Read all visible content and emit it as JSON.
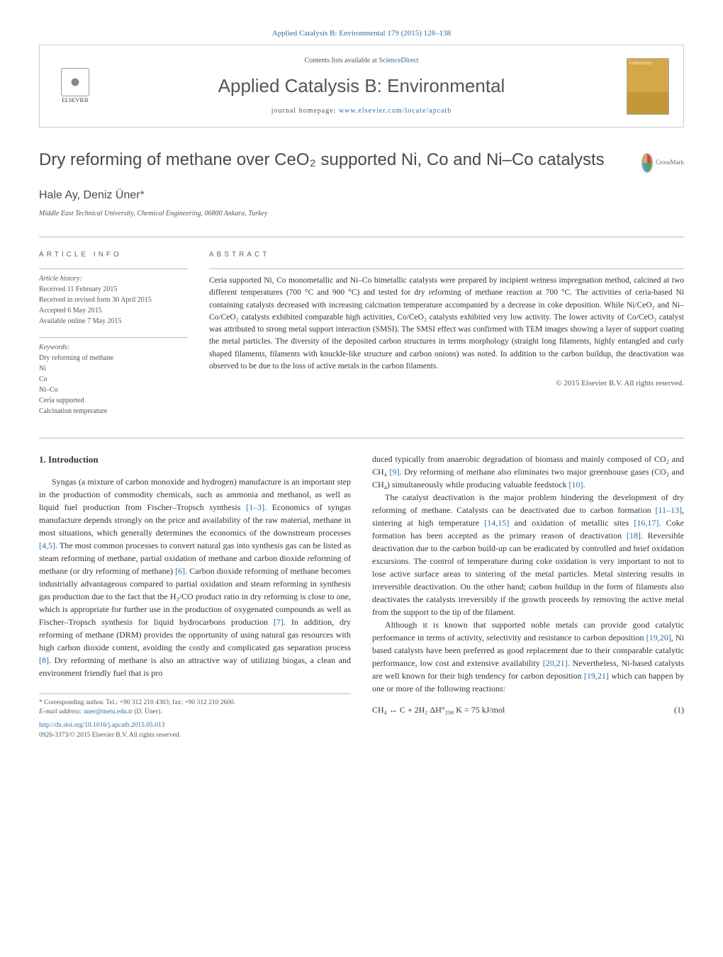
{
  "journal": {
    "citation": "Applied Catalysis B: Environmental 179 (2015) 128–138",
    "contents_prefix": "Contents lists available at ",
    "contents_link": "ScienceDirect",
    "name": "Applied Catalysis B: Environmental",
    "homepage_prefix": "journal homepage: ",
    "homepage_url": "www.elsevier.com/locate/apcatb",
    "publisher": "ELSEVIER",
    "cover_text": "CATALYSIS"
  },
  "article": {
    "title_html": "Dry reforming of methane over CeO₂ supported Ni, Co and Ni–Co catalysts",
    "crossmark": "CrossMark",
    "authors_html": "Hale Ay, Deniz Üner",
    "author_mark": "*",
    "affiliation": "Middle East Technical University, Chemical Engineering, 06800 Ankara, Turkey"
  },
  "info": {
    "label": "article info",
    "history_label": "Article history:",
    "received": "Received 11 February 2015",
    "revised": "Received in revised form 30 April 2015",
    "accepted": "Accepted 6 May 2015",
    "online": "Available online 7 May 2015",
    "keywords_label": "Keywords:",
    "kw1": "Dry reforming of methane",
    "kw2": "Ni",
    "kw3": "Co",
    "kw4": "Ni–Co",
    "kw5": "Ceria supported",
    "kw6": "Calcination temperature"
  },
  "abstract": {
    "label": "abstract",
    "text": "Ceria supported Ni, Co monometallic and Ni–Co bimetallic catalysts were prepared by incipient wetness impregnation method, calcined at two different temperatures (700 °C and 900 °C) and tested for dry reforming of methane reaction at 700 °C. The activities of ceria-based Ni containing catalysts decreased with increasing calcination temperature accompanied by a decrease in coke deposition. While Ni/CeO₂ and Ni–Co/CeO₂ catalysts exhibited comparable high activities, Co/CeO₂ catalysts exhibited very low activity. The lower activity of Co/CeO₂ catalyst was attributed to strong metal support interaction (SMSI). The SMSI effect was confirmed with TEM images showing a layer of support coating the metal particles. The diversity of the deposited carbon structures in terms morphology (straight long filaments, highly entangled and curly shaped filaments, filaments with knuckle-like structure and carbon onions) was noted. In addition to the carbon buildup, the deactivation was observed to be due to the loss of active metals in the carbon filaments.",
    "copyright": "© 2015 Elsevier B.V. All rights reserved."
  },
  "body": {
    "heading": "1. Introduction",
    "p1_a": "Syngas (a mixture of carbon monoxide and hydrogen) manufacture is an important step in the production of commodity chemicals, such as ammonia and methanol, as well as liquid fuel production from Fischer–Tropsch synthesis ",
    "r1": "[1–3]",
    "p1_b": ". Economics of syngas manufacture depends strongly on the price and availability of the raw material, methane in most situations, which generally determines the economics of the downstream processes ",
    "r2": "[4,5]",
    "p1_c": ". The most common processes to convert natural gas into synthesis gas can be listed as steam reforming of methane, partial oxidation of methane and carbon dioxide reforming of methane (or dry reforming of methane) ",
    "r3": "[6]",
    "p1_d": ". Carbon dioxide reforming of methane becomes industrially advantageous compared to partial oxidation and steam reforming in synthesis gas production due to the fact that the H₂/CO product ratio in dry reforming is close to one, which is appropriate for further use in the production of oxygenated compounds as well as Fischer–Tropsch synthesis for liquid hydrocarbons production ",
    "r4": "[7]",
    "p1_e": ". In addition, dry reforming of methane (DRM) provides the opportunity of using natural gas resources with high carbon dioxide content, avoiding the costly and complicated gas separation process ",
    "r5": "[8]",
    "p1_f": ". Dry reforming of methane is also an attractive way of utilizing biogas, a clean and environment friendly fuel that is pro",
    "p1_g": "duced typically from anaerobic degradation of biomass and mainly composed of CO₂ and CH₄ ",
    "r6": "[9]",
    "p1_h": ". Dry reforming of methane also eliminates two major greenhouse gases (CO₂ and CH₄) simultaneously while producing valuable feedstock ",
    "r7": "[10]",
    "p1_i": ".",
    "p2_a": "The catalyst deactivation is the major problem hindering the development of dry reforming of methane. Catalysts can be deactivated due to carbon formation ",
    "r8": "[11–13]",
    "p2_b": ", sintering at high temperature ",
    "r9": "[14,15]",
    "p2_c": " and oxidation of metallic sites ",
    "r10": "[16,17]",
    "p2_d": ". Coke formation has been accepted as the primary reason of deactivation ",
    "r11": "[18]",
    "p2_e": ". Reversible deactivation due to the carbon build-up can be eradicated by controlled and brief oxidation excursions. The control of temperature during coke oxidation is very important to not to lose active surface areas to sintering of the metal particles. Metal sintering results in irreversible deactivation. On the other hand; carbon buildup in the form of filaments also deactivates the catalysts irreversibly if the growth proceeds by removing the active metal from the support to the tip of the filament.",
    "p3_a": "Although it is known that supported noble metals can provide good catalytic performance in terms of activity, selectivity and resistance to carbon deposition ",
    "r12": "[19,20]",
    "p3_b": ", Ni based catalysts have been preferred as good replacement due to their comparable catalytic performance, low cost and extensive availability ",
    "r13": "[20,21]",
    "p3_c": ". Nevertheless, Ni-based catalysts are well known for their high tendency for carbon deposition ",
    "r14": "[19,21]",
    "p3_d": " which can happen by one or more of the following reactions:",
    "eq1": "CH₄ ↔ C + 2H₂    ΔH°₂₉₈ K = 75 kJ/mol",
    "eq1_num": "(1)"
  },
  "footer": {
    "corresponding": "* Corresponding author. Tel.: +90 312 210 4383; fax: +90 312 210 2600.",
    "email_label": "E-mail address: ",
    "email": "uner@metu.edu.tr",
    "email_suffix": " (D. Üner).",
    "doi": "http://dx.doi.org/10.1016/j.apcatb.2015.05.013",
    "issn_line": "0926-3373/© 2015 Elsevier B.V. All rights reserved."
  },
  "colors": {
    "link": "#2e6da4",
    "text": "#333333",
    "muted": "#555555",
    "border": "#bbbbbb"
  }
}
